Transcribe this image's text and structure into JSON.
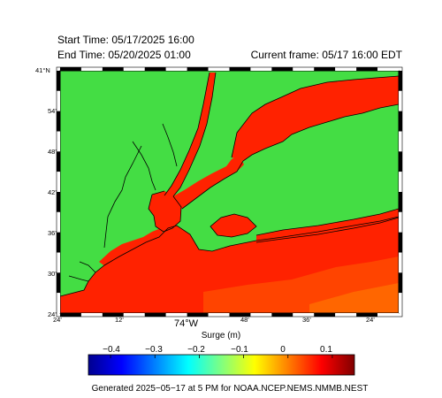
{
  "header": {
    "start_time": "Start Time: 05/17/2025 16:00",
    "end_time": "End Time:  05/20/2025 01:00",
    "current_frame": "Current frame: 05/17 16:00 EDT"
  },
  "map": {
    "lat_labels": [
      "41°N",
      "54'",
      "48'",
      "42'",
      "36'",
      "30'",
      "24'"
    ],
    "lon_labels": [
      "24'",
      "12'",
      "74°W",
      "48'",
      "36'",
      "24'"
    ],
    "land_color": "#44dd44",
    "water_color": "#ff2200",
    "frame_color": "#000000"
  },
  "colorbar": {
    "title": "Surge (m)",
    "ticks": [
      "−0.4",
      "−0.3",
      "−0.2",
      "−0.1",
      "0",
      "0.1"
    ],
    "tick_values": [
      -0.4,
      -0.3,
      -0.2,
      -0.1,
      0,
      0.1
    ],
    "range": [
      -0.45,
      0.15
    ],
    "colors": [
      "#00008f",
      "#0000ff",
      "#0080ff",
      "#00ffff",
      "#80ff80",
      "#ffff00",
      "#ff8000",
      "#ff0000",
      "#800000"
    ]
  },
  "footer": "Generated 2025−05−17 at 5 PM for NOAA.NCEP.NEMS.NMMB.NEST"
}
